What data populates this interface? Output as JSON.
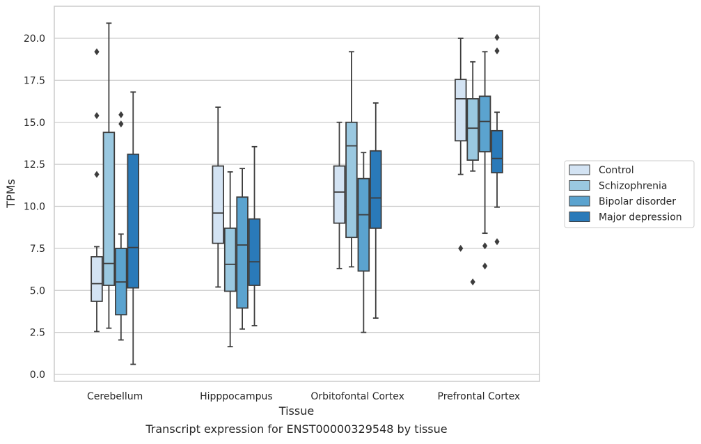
{
  "chart_data": {
    "type": "box",
    "xlabel": "Tissue",
    "ylabel": "TPMs",
    "caption": "Transcript expression for ENST00000329548 by tissue",
    "ylim": [
      -0.4,
      22.0
    ],
    "yticks": [
      "0.0",
      "2.5",
      "5.0",
      "7.5",
      "10.0",
      "12.5",
      "15.0",
      "17.5",
      "20.0"
    ],
    "grid": "horizontal",
    "legend_position": "right",
    "categories": [
      "Cerebellum",
      "Hipppocampus",
      "Orbitofontal Cortex",
      "Prefrontal Cortex"
    ],
    "series": [
      {
        "name": "Control",
        "color": "#d3e3f3",
        "boxes": [
          {
            "whisker_low": 2.55,
            "q1": 4.35,
            "median": 5.4,
            "q3": 7.0,
            "whisker_high": 7.6,
            "outliers": [
              11.9,
              15.4,
              19.2
            ]
          },
          {
            "whisker_low": 5.2,
            "q1": 7.8,
            "median": 9.6,
            "q3": 12.4,
            "whisker_high": 15.9,
            "outliers": []
          },
          {
            "whisker_low": 6.3,
            "q1": 9.0,
            "median": 10.85,
            "q3": 12.4,
            "whisker_high": 15.0,
            "outliers": []
          },
          {
            "whisker_low": 11.9,
            "q1": 13.9,
            "median": 16.4,
            "q3": 17.55,
            "whisker_high": 20.0,
            "outliers": [
              7.5
            ]
          }
        ]
      },
      {
        "name": "Schizophrenia",
        "color": "#9ac8e0",
        "boxes": [
          {
            "whisker_low": 2.75,
            "q1": 5.3,
            "median": 6.6,
            "q3": 14.4,
            "whisker_high": 20.9,
            "outliers": []
          },
          {
            "whisker_low": 1.65,
            "q1": 4.95,
            "median": 6.55,
            "q3": 8.7,
            "whisker_high": 12.05,
            "outliers": []
          },
          {
            "whisker_low": 6.4,
            "q1": 8.15,
            "median": 13.6,
            "q3": 15.0,
            "whisker_high": 19.2,
            "outliers": []
          },
          {
            "whisker_low": 12.1,
            "q1": 12.75,
            "median": 14.65,
            "q3": 16.4,
            "whisker_high": 18.6,
            "outliers": [
              5.5
            ]
          }
        ]
      },
      {
        "name": "Bipolar disorder",
        "color": "#5ba3cf",
        "boxes": [
          {
            "whisker_low": 2.05,
            "q1": 3.55,
            "median": 5.5,
            "q3": 7.5,
            "whisker_high": 8.35,
            "outliers": [
              14.9,
              15.45
            ]
          },
          {
            "whisker_low": 2.7,
            "q1": 3.95,
            "median": 7.7,
            "q3": 10.55,
            "whisker_high": 12.25,
            "outliers": []
          },
          {
            "whisker_low": 2.5,
            "q1": 6.15,
            "median": 9.5,
            "q3": 11.65,
            "whisker_high": 13.2,
            "outliers": []
          },
          {
            "whisker_low": 8.4,
            "q1": 13.25,
            "median": 15.05,
            "q3": 16.55,
            "whisker_high": 19.2,
            "outliers": [
              6.45,
              7.65
            ]
          }
        ]
      },
      {
        "name": "Major depression",
        "color": "#2a7ab9",
        "boxes": [
          {
            "whisker_low": 0.6,
            "q1": 5.15,
            "median": 7.55,
            "q3": 13.1,
            "whisker_high": 16.8,
            "outliers": []
          },
          {
            "whisker_low": 2.9,
            "q1": 5.3,
            "median": 6.7,
            "q3": 9.25,
            "whisker_high": 13.55,
            "outliers": []
          },
          {
            "whisker_low": 3.35,
            "q1": 8.7,
            "median": 10.5,
            "q3": 13.3,
            "whisker_high": 16.15,
            "outliers": []
          },
          {
            "whisker_low": 9.95,
            "q1": 12.0,
            "median": 12.85,
            "q3": 14.5,
            "whisker_high": 15.6,
            "outliers": [
              7.9,
              19.25,
              20.05
            ]
          }
        ]
      }
    ]
  }
}
